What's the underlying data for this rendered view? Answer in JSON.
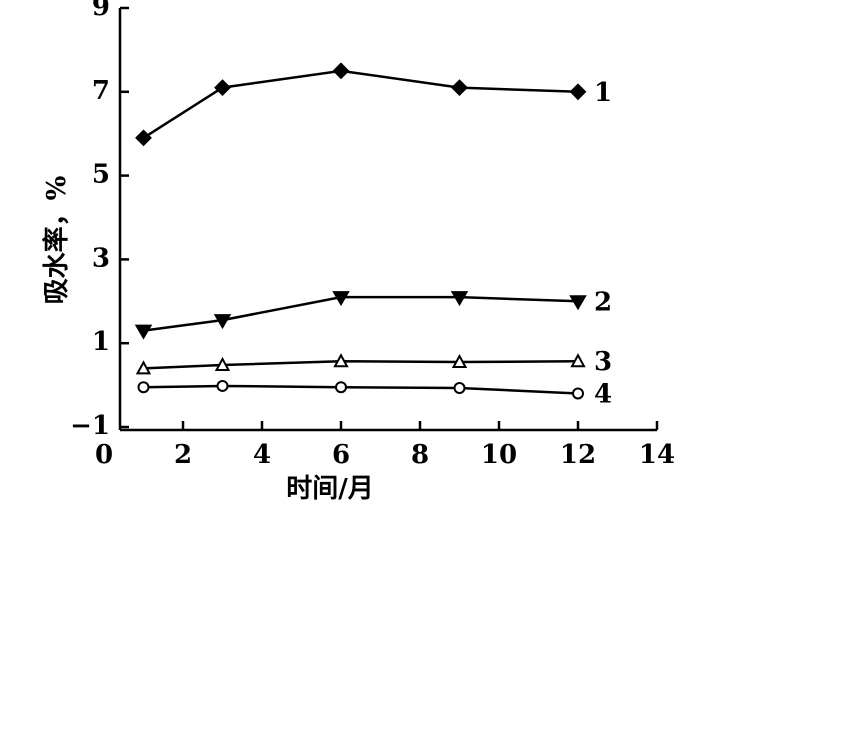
{
  "chart_data": {
    "type": "line",
    "x_label": "时间/月",
    "y_label": "吸水率，%",
    "x": [
      1,
      3,
      6,
      9,
      12
    ],
    "series": [
      {
        "name": "1",
        "color": "#000000",
        "marker": "diamond",
        "values": [
          5.9,
          7.1,
          7.5,
          7.1,
          7.0
        ]
      },
      {
        "name": "2",
        "color": "#000000",
        "marker": "triangle-down",
        "values": [
          1.3,
          1.55,
          2.1,
          2.1,
          2.0
        ]
      },
      {
        "name": "3",
        "color": "#000000",
        "marker": "triangle-up-open",
        "values": [
          0.4,
          0.48,
          0.57,
          0.55,
          0.57
        ]
      },
      {
        "name": "4",
        "color": "#000000",
        "marker": "circle-open",
        "values": [
          -0.05,
          -0.02,
          -0.05,
          -0.07,
          -0.2
        ]
      }
    ],
    "xlim": [
      0,
      14
    ],
    "xticks": [
      0,
      2,
      4,
      6,
      8,
      10,
      12,
      14
    ],
    "ylim": [
      -1,
      9
    ],
    "yticks": [
      {
        "value": -1,
        "label": "−1"
      },
      1,
      3,
      5,
      7,
      9
    ]
  }
}
